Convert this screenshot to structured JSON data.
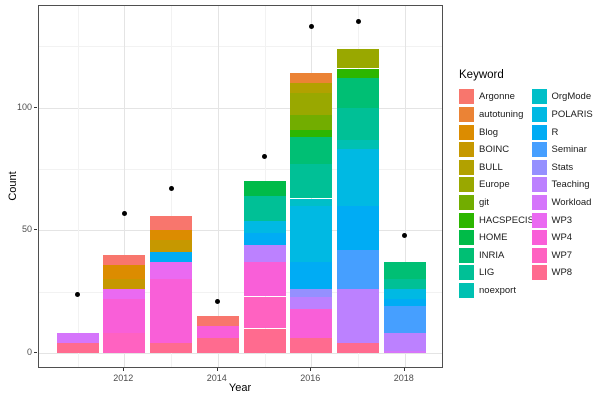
{
  "chart_data": {
    "type": "bar",
    "subtype": "stacked-bar-with-points",
    "title": "",
    "xlabel": "Year",
    "ylabel": "Count",
    "x_major_ticks": [
      2012,
      2014,
      2016,
      2018
    ],
    "x_minor_ticks": [
      2011,
      2013,
      2015,
      2017
    ],
    "y_major_ticks": [
      0,
      50,
      100
    ],
    "y_minor_ticks": [
      25,
      75,
      125
    ],
    "ylim": [
      0,
      141
    ],
    "grid": "on",
    "legend_position": "right",
    "legend_title": "Keyword",
    "keywords": [
      {
        "label": "Argonne",
        "color": "#F8766D"
      },
      {
        "label": "autotuning",
        "color": "#EB8335"
      },
      {
        "label": "Blog",
        "color": "#DC8C00"
      },
      {
        "label": "BOINC",
        "color": "#C69800"
      },
      {
        "label": "BULL",
        "color": "#B2A100"
      },
      {
        "label": "Europe",
        "color": "#99A800"
      },
      {
        "label": "git",
        "color": "#72AD00"
      },
      {
        "label": "HACSPECIS",
        "color": "#2CB600"
      },
      {
        "label": "HOME",
        "color": "#00BB48"
      },
      {
        "label": "INRIA",
        "color": "#00BF74"
      },
      {
        "label": "LIG",
        "color": "#00C096"
      },
      {
        "label": "noexport",
        "color": "#00C1B2"
      },
      {
        "label": "OrgMode",
        "color": "#00BFC8"
      },
      {
        "label": "POLARIS",
        "color": "#00B9E3"
      },
      {
        "label": "R",
        "color": "#00ACF4"
      },
      {
        "label": "Seminar",
        "color": "#469FFF"
      },
      {
        "label": "Stats",
        "color": "#9590FF"
      },
      {
        "label": "Teaching",
        "color": "#BC81FF"
      },
      {
        "label": "Workload",
        "color": "#D575FB"
      },
      {
        "label": "WP3",
        "color": "#EA6AF1"
      },
      {
        "label": "WP4",
        "color": "#F95FD8"
      },
      {
        "label": "WP7",
        "color": "#FF62C1"
      },
      {
        "label": "WP8",
        "color": "#FF6B8F"
      }
    ],
    "bars": [
      {
        "year": 2011,
        "total": 8,
        "segments": [
          [
            "WP8",
            4
          ],
          [
            "Workload",
            4
          ]
        ]
      },
      {
        "year": 2012,
        "total": 40,
        "segments": [
          [
            "WP7",
            8
          ],
          [
            "WP4",
            14
          ],
          [
            "WP3",
            4
          ],
          [
            "BOINC",
            4
          ],
          [
            "Blog",
            6
          ],
          [
            "Argonne",
            4
          ]
        ]
      },
      {
        "year": 2013,
        "total": 56,
        "segments": [
          [
            "WP8",
            4
          ],
          [
            "WP4",
            26
          ],
          [
            "WP3",
            7
          ],
          [
            "R",
            4
          ],
          [
            "BOINC",
            5
          ],
          [
            "Blog",
            4
          ],
          [
            "Argonne",
            6
          ]
        ]
      },
      {
        "year": 2014,
        "total": 15,
        "segments": [
          [
            "WP8",
            6
          ],
          [
            "WP4",
            5
          ],
          [
            "Argonne",
            4
          ]
        ]
      },
      {
        "year": 2015,
        "total": 70,
        "segments": [
          [
            "WP8",
            10
          ],
          [
            "WP7",
            13
          ],
          [
            "WP4",
            14
          ],
          [
            "Teaching",
            7
          ],
          [
            "R",
            5
          ],
          [
            "POLARIS",
            5
          ],
          [
            "LIG",
            10
          ],
          [
            "HOME",
            6
          ]
        ]
      },
      {
        "year": 2016,
        "total": 114,
        "segments": [
          [
            "WP8",
            6
          ],
          [
            "WP4",
            12
          ],
          [
            "Teaching",
            5
          ],
          [
            "Stats",
            3
          ],
          [
            "R",
            11
          ],
          [
            "POLARIS",
            23
          ],
          [
            "OrgMode",
            3
          ],
          [
            "LIG",
            14
          ],
          [
            "INRIA",
            11
          ],
          [
            "HACSPECIS",
            3
          ],
          [
            "git",
            6
          ],
          [
            "Europe",
            9
          ],
          [
            "BULL",
            4
          ],
          [
            "autotuning",
            4
          ]
        ]
      },
      {
        "year": 2017,
        "total": 124,
        "segments": [
          [
            "WP8",
            4
          ],
          [
            "Teaching",
            22
          ],
          [
            "Seminar",
            16
          ],
          [
            "R",
            18
          ],
          [
            "POLARIS",
            23
          ],
          [
            "noexport",
            4
          ],
          [
            "LIG",
            13
          ],
          [
            "INRIA",
            12
          ],
          [
            "HACSPECIS",
            4
          ],
          [
            "Europe",
            8
          ]
        ]
      },
      {
        "year": 2018,
        "total": 37,
        "segments": [
          [
            "Workload",
            1
          ],
          [
            "Teaching",
            7
          ],
          [
            "Seminar",
            11
          ],
          [
            "R",
            3
          ],
          [
            "POLARIS",
            4
          ],
          [
            "LIG",
            4
          ],
          [
            "INRIA",
            7
          ]
        ]
      }
    ],
    "points": [
      {
        "year": 2011,
        "count": 24
      },
      {
        "year": 2012,
        "count": 57
      },
      {
        "year": 2013,
        "count": 67
      },
      {
        "year": 2014,
        "count": 21
      },
      {
        "year": 2015,
        "count": 80
      },
      {
        "year": 2016,
        "count": 133
      },
      {
        "year": 2017,
        "count": 135
      },
      {
        "year": 2018,
        "count": 48
      }
    ]
  }
}
